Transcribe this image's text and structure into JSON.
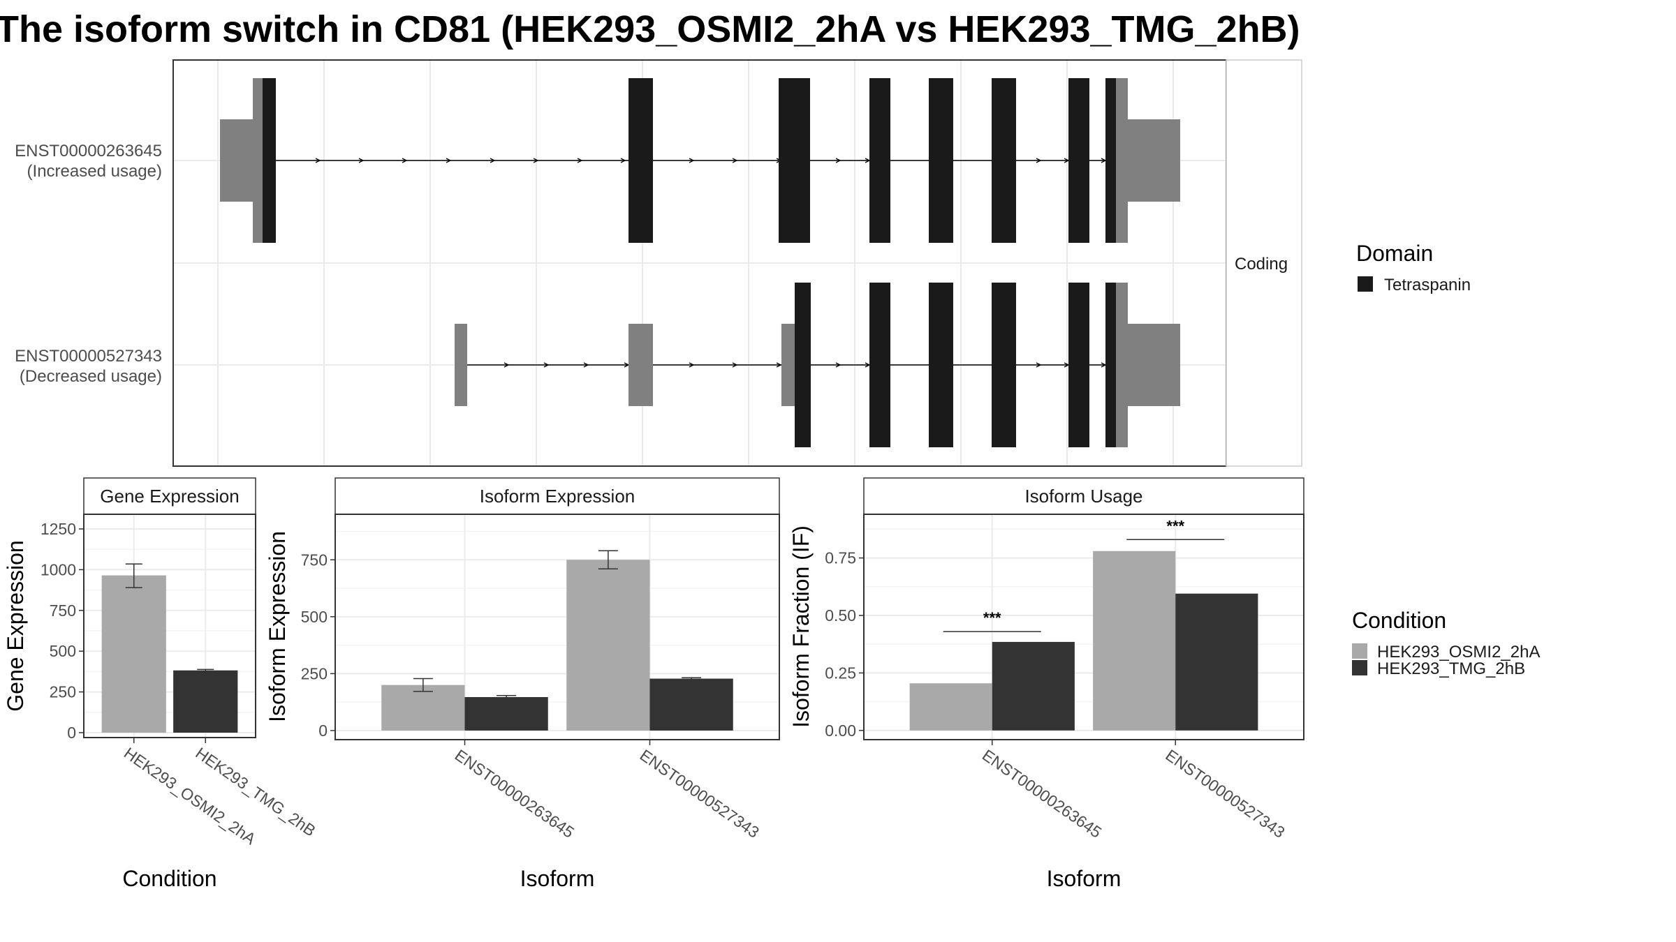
{
  "title": "The isoform switch in CD81 (HEK293_OSMI2_2hA vs HEK293_TMG_2hB)",
  "colors": {
    "condition_a": "#a9a9a9",
    "condition_b": "#333333",
    "coding_exon": "#1a1a1a",
    "utr": "#808080",
    "grid": "#ebebeb",
    "panel_border": "#333333"
  },
  "chart_data": [
    {
      "type": "gene-structure",
      "strip_label": "Coding",
      "transcripts": [
        {
          "id": "ENST00000263645",
          "label": "(Increased usage)"
        },
        {
          "id": "ENST00000527343",
          "label": "(Decreased usage)"
        }
      ],
      "legend": {
        "title": "Domain",
        "items": [
          "Tetraspanin"
        ]
      }
    },
    {
      "type": "bar",
      "strip_label": "Gene Expression",
      "xlabel": "Condition",
      "ylabel": "Gene Expression",
      "categories": [
        "HEK293_OSMI2_2hA",
        "HEK293_TMG_2hB"
      ],
      "values": [
        965,
        382
      ],
      "errors": [
        [
          890,
          1035
        ],
        [
          375,
          388
        ]
      ],
      "ylim": [
        -30,
        1340
      ],
      "yticks": [
        0,
        250,
        500,
        750,
        1000,
        1250
      ]
    },
    {
      "type": "bar",
      "strip_label": "Isoform Expression",
      "xlabel": "Isoform",
      "ylabel": "Isoform Expression",
      "categories": [
        "ENST00000263645",
        "ENST00000527343"
      ],
      "series": [
        {
          "name": "HEK293_OSMI2_2hA",
          "values": [
            200,
            750
          ],
          "errors": [
            [
              172,
              228
            ],
            [
              710,
              790
            ]
          ]
        },
        {
          "name": "HEK293_TMG_2hB",
          "values": [
            147,
            228
          ],
          "errors": [
            [
              140,
              154
            ],
            [
              224,
              232
            ]
          ]
        }
      ],
      "ylim": [
        -40,
        950
      ],
      "yticks": [
        0,
        250,
        500,
        750
      ]
    },
    {
      "type": "bar",
      "strip_label": "Isoform Usage",
      "xlabel": "Isoform",
      "ylabel": "Isoform Fraction (IF)",
      "categories": [
        "ENST00000263645",
        "ENST00000527343"
      ],
      "series": [
        {
          "name": "HEK293_OSMI2_2hA",
          "values": [
            0.205,
            0.78
          ]
        },
        {
          "name": "HEK293_TMG_2hB",
          "values": [
            0.385,
            0.595
          ]
        }
      ],
      "significance": [
        {
          "category": "ENST00000263645",
          "label": "***",
          "y": 0.43
        },
        {
          "category": "ENST00000527343",
          "label": "***",
          "y": 0.83
        }
      ],
      "ylim": [
        -0.04,
        0.94
      ],
      "yticks": [
        "0.00",
        "0.25",
        "0.50",
        "0.75"
      ]
    }
  ],
  "condition_legend": {
    "title": "Condition",
    "items": [
      "HEK293_OSMI2_2hA",
      "HEK293_TMG_2hB"
    ]
  }
}
